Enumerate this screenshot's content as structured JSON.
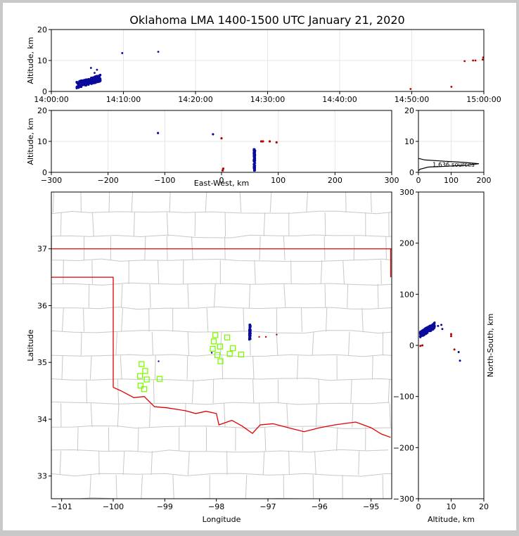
{
  "title": "Oklahoma LMA 1400-1500 UTC January 21, 2020",
  "colors": {
    "frame": "#c8c8c8",
    "panel": "#ffffff",
    "grid": "#e6e6e6",
    "early": "#0a0a9c",
    "late": "#b30000",
    "border": "#e00000",
    "county": "#c8c8c8",
    "station": "#7cfc00"
  },
  "chart_data": [
    {
      "id": "time-height",
      "type": "scatter",
      "xlabel": "",
      "ylabel": "Altitude, km",
      "xlim": [
        "14:00:00",
        "15:00:00"
      ],
      "ylim": [
        0,
        20
      ],
      "xticks": [
        "14:00:00",
        "14:10:00",
        "14:20:00",
        "14:30:00",
        "14:40:00",
        "14:50:00",
        "15:00:00"
      ],
      "yticks": [
        0,
        10,
        20
      ],
      "grid": true,
      "cluster": {
        "x_from": "14:03:30",
        "x_to": "14:06:50",
        "y_from": 1.0,
        "y_to": 5.0
      },
      "points": [
        {
          "x": "14:05:30",
          "y": 7.6,
          "c": "early"
        },
        {
          "x": "14:06:00",
          "y": 6.0,
          "c": "early"
        },
        {
          "x": "14:06:20",
          "y": 7.0,
          "c": "early"
        },
        {
          "x": "14:09:50",
          "y": 12.4,
          "c": "early"
        },
        {
          "x": "14:14:50",
          "y": 12.8,
          "c": "early"
        },
        {
          "x": "14:49:50",
          "y": 0.8,
          "c": "late"
        },
        {
          "x": "14:55:30",
          "y": 1.5,
          "c": "late"
        },
        {
          "x": "14:57:20",
          "y": 9.8,
          "c": "late"
        },
        {
          "x": "14:58:30",
          "y": 10.0,
          "c": "late"
        },
        {
          "x": "14:58:50",
          "y": 10.0,
          "c": "late"
        },
        {
          "x": "14:59:50",
          "y": 10.3,
          "c": "late"
        },
        {
          "x": "14:59:55",
          "y": 11.0,
          "c": "late"
        }
      ]
    },
    {
      "id": "ew-height",
      "type": "scatter",
      "xlabel": "East-West, km",
      "ylabel": "Altitude, km",
      "xlim": [
        -300,
        300
      ],
      "ylim": [
        0,
        20
      ],
      "xticks": [
        -300,
        -200,
        -100,
        0,
        100,
        200,
        300
      ],
      "yticks": [
        0,
        10,
        20
      ],
      "grid": true,
      "cluster": {
        "x": 58,
        "y_from": 0.5,
        "y_to": 7.5
      },
      "points": [
        {
          "x": -112,
          "y": 12.7,
          "c": "early"
        },
        {
          "x": -15,
          "y": 12.3,
          "c": "early"
        },
        {
          "x": 0,
          "y": 11.0,
          "c": "late"
        },
        {
          "x": 3,
          "y": 1.2,
          "c": "late"
        },
        {
          "x": 2,
          "y": 0.6,
          "c": "late"
        },
        {
          "x": 70,
          "y": 10.0,
          "c": "late"
        },
        {
          "x": 73,
          "y": 10.0,
          "c": "late"
        },
        {
          "x": 85,
          "y": 10.0,
          "c": "late"
        },
        {
          "x": 97,
          "y": 9.7,
          "c": "late"
        }
      ]
    },
    {
      "id": "histogram",
      "type": "line",
      "xlim": [
        0,
        200
      ],
      "ylim": [
        0,
        20
      ],
      "xticks": [
        0,
        100,
        200
      ],
      "yticks": [
        0,
        10,
        20
      ],
      "annotation": "1,636 sources",
      "profile": [
        [
          0,
          4.5
        ],
        [
          20,
          4.0
        ],
        [
          80,
          3.6
        ],
        [
          140,
          3.2
        ],
        [
          185,
          2.8
        ],
        [
          150,
          2.3
        ],
        [
          90,
          2.0
        ],
        [
          30,
          1.7
        ],
        [
          5,
          1.0
        ],
        [
          0,
          0.5
        ]
      ]
    },
    {
      "id": "plan-view",
      "type": "scatter",
      "xlabel": "Longitude",
      "ylabel": "Latitude",
      "xlim": [
        -101.2,
        -94.6
      ],
      "ylim": [
        32.6,
        38.0
      ],
      "xticks": [
        -101,
        -100,
        -99,
        -98,
        -97,
        -96,
        -95
      ],
      "yticks": [
        33,
        34,
        35,
        36,
        37
      ],
      "cluster": {
        "x": -97.35,
        "y_from": 35.4,
        "y_to": 35.67
      },
      "points": [
        {
          "x": -99.12,
          "y": 35.02,
          "c": "early"
        },
        {
          "x": -98.09,
          "y": 35.17,
          "c": "early"
        },
        {
          "x": -97.17,
          "y": 35.45,
          "c": "late"
        },
        {
          "x": -97.04,
          "y": 35.45,
          "c": "late"
        },
        {
          "x": -96.83,
          "y": 35.49,
          "c": "late"
        }
      ],
      "stations": [
        [
          -98.02,
          35.48
        ],
        [
          -98.05,
          35.37
        ],
        [
          -98.07,
          35.24
        ],
        [
          -97.98,
          35.13
        ],
        [
          -97.93,
          35.28
        ],
        [
          -97.92,
          35.02
        ],
        [
          -97.79,
          35.44
        ],
        [
          -97.74,
          35.15
        ],
        [
          -97.68,
          35.25
        ],
        [
          -97.52,
          35.14
        ],
        [
          -99.45,
          34.97
        ],
        [
          -99.38,
          34.85
        ],
        [
          -99.48,
          34.76
        ],
        [
          -99.35,
          34.7
        ],
        [
          -99.1,
          34.71
        ],
        [
          -99.47,
          34.59
        ],
        [
          -99.4,
          34.53
        ]
      ]
    },
    {
      "id": "ns-height",
      "type": "scatter",
      "xlabel": "Altitude, km",
      "ylabel": "North-South, km",
      "xlim": [
        0,
        20
      ],
      "ylim": [
        -300,
        300
      ],
      "xticks": [
        0,
        10,
        20
      ],
      "yticks": [
        -300,
        -200,
        -100,
        0,
        100,
        200,
        300
      ],
      "cluster": {
        "x_from": 0.5,
        "x_to": 5.0,
        "y_from": 15,
        "y_to": 45
      },
      "points": [
        {
          "x": 6.0,
          "y": 38,
          "c": "early"
        },
        {
          "x": 7.0,
          "y": 40,
          "c": "early"
        },
        {
          "x": 7.3,
          "y": 32,
          "c": "early"
        },
        {
          "x": 12.3,
          "y": -13,
          "c": "early"
        },
        {
          "x": 12.7,
          "y": -30,
          "c": "early"
        },
        {
          "x": 0.6,
          "y": -1,
          "c": "late"
        },
        {
          "x": 1.2,
          "y": 0,
          "c": "late"
        },
        {
          "x": 10.0,
          "y": 22,
          "c": "late"
        },
        {
          "x": 10.0,
          "y": 18,
          "c": "late"
        },
        {
          "x": 11.0,
          "y": -8,
          "c": "late"
        }
      ]
    }
  ]
}
